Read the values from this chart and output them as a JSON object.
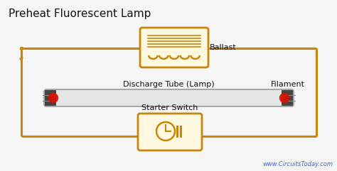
{
  "title": "Preheat Fluorescent Lamp",
  "bg_color": "#f5f5f5",
  "wire_color": "#c8860a",
  "arrow_color": "#cc2222",
  "text_color": "#111111",
  "label_ballast": "Ballast",
  "label_discharge": "Discharge Tube (Lamp)",
  "label_filament": "Filament",
  "label_starter": "Starter Switch",
  "watermark": "www.CircuitsToday.com",
  "wire_lw": 2.2
}
